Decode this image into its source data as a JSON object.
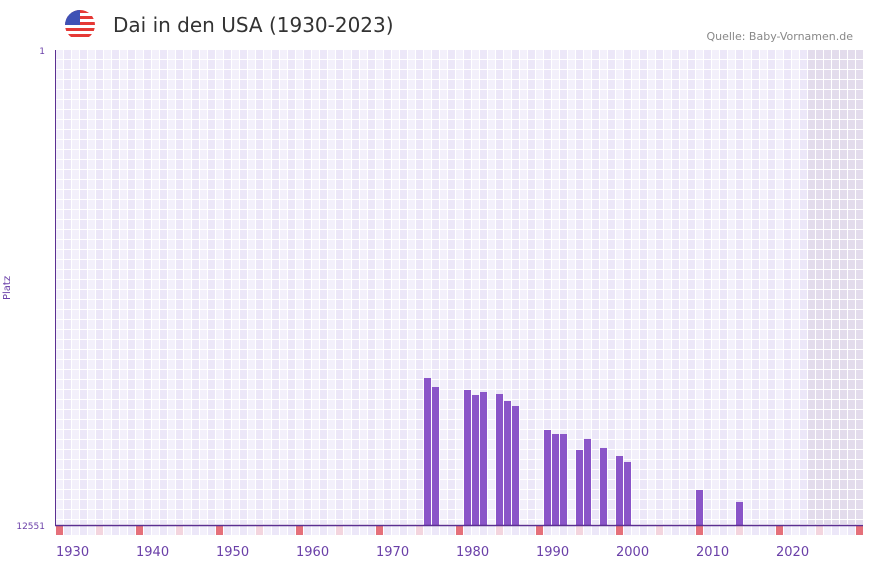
{
  "header": {
    "title": "Dai in den USA (1930-2023)",
    "source": "Quelle: Baby-Vornamen.de",
    "flag_icon": "us-flag-icon"
  },
  "chart_data": {
    "type": "bar",
    "title": "Dai in den USA (1930-2023)",
    "xlabel": "",
    "ylabel": "Platz",
    "y_reversed": true,
    "ylim": [
      1,
      12551
    ],
    "y_ticks": [
      "1",
      "12551"
    ],
    "xlim": [
      1930,
      2030
    ],
    "x_ticks": [
      "1930",
      "1940",
      "1950",
      "1960",
      "1970",
      "1980",
      "1990",
      "2000",
      "2010",
      "2020"
    ],
    "shaded_from_year": 2024,
    "x": [
      1976,
      1977,
      1981,
      1982,
      1983,
      1985,
      1986,
      1987,
      1991,
      1992,
      1993,
      1995,
      1996,
      1998,
      2000,
      2001,
      2010,
      2015
    ],
    "values": [
      8667,
      8905,
      8984,
      9116,
      9037,
      9090,
      9275,
      9407,
      10041,
      10147,
      10147,
      10569,
      10278,
      10516,
      10728,
      10886,
      11626,
      11943
    ],
    "colors": {
      "bar": "#8a55c8",
      "axis": "#5b2f91",
      "tick": "#6a3fa8",
      "decade_marker": "#e5707a",
      "half_marker": "#f3d5de",
      "cell_a": "#f3f0fb",
      "cell_b": "#ece7f8",
      "shade": "#e3dcec"
    }
  }
}
